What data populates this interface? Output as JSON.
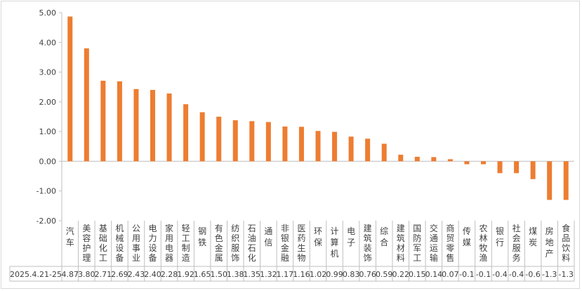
{
  "chart_data": {
    "type": "bar",
    "title": "",
    "xlabel": "",
    "ylabel": "",
    "ylim": [
      -2,
      5
    ],
    "y_ticks": [
      "5.00",
      "4.00",
      "3.00",
      "2.00",
      "1.00",
      "0.00",
      "-1.00",
      "-2.00"
    ],
    "y_tick_values": [
      5,
      4,
      3,
      2,
      1,
      0,
      -1,
      -2
    ],
    "grid": false,
    "bar_color": "#ED7D31",
    "row_label": "2025.4.21-25",
    "categories": [
      "汽车",
      "美容护理",
      "基础化工",
      "机械设备",
      "公用事业",
      "电力设备",
      "家用电器",
      "轻工制造",
      "钢铁",
      "有色金属",
      "纺织服饰",
      "石油石化",
      "通信",
      "非银金融",
      "医药生物",
      "环保",
      "计算机",
      "电子",
      "建筑装饰",
      "综合",
      "建筑材料",
      "国防军工",
      "交通运输",
      "商贸零售",
      "传媒",
      "农林牧渔",
      "银行",
      "社会服务",
      "煤炭",
      "房地产",
      "食品饮料"
    ],
    "values": [
      4.87,
      3.8,
      2.71,
      2.69,
      2.43,
      2.4,
      2.28,
      1.92,
      1.65,
      1.5,
      1.38,
      1.35,
      1.32,
      1.17,
      1.16,
      1.02,
      0.99,
      0.83,
      0.76,
      0.59,
      0.22,
      0.15,
      0.14,
      0.07,
      -0.1,
      -0.1,
      -0.4,
      -0.4,
      -0.6,
      -1.3,
      -1.3
    ],
    "value_labels": [
      "4.87",
      "3.80",
      "2.71",
      "2.69",
      "2.43",
      "2.40",
      "2.28",
      "1.92",
      "1.65",
      "1.50",
      "1.38",
      "1.35",
      "1.32",
      "1.17",
      "1.16",
      "1.02",
      "0.99",
      "0.83",
      "0.76",
      "0.59",
      "0.22",
      "0.15",
      "0.14",
      "0.07",
      "-0.1",
      "-0.1",
      "-0.4",
      "-0.4",
      "-0.6",
      "-1.3",
      "-1.3"
    ]
  }
}
